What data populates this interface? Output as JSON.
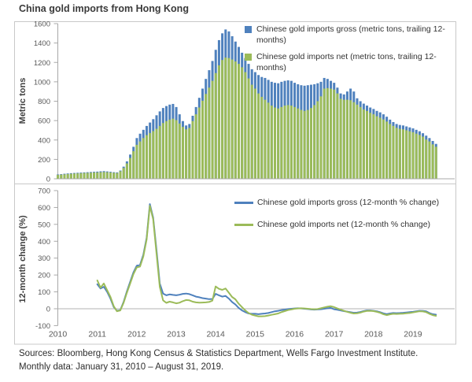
{
  "title": "China gold imports from Hong Kong",
  "footer": {
    "line1": "Sources: Bloomberg, Hong Kong Census & Statistics Department, Wells Fargo Investment Institute.",
    "line2": "Monthly data: January 31, 2010 – August 31, 2019."
  },
  "colors": {
    "gross": "#4f81bd",
    "net": "#9bbb59",
    "panel_border": "#c8c8c8",
    "axis_line": "#a8a8a8",
    "zero_line": "#b3b3b3",
    "tick_text": "#595959",
    "axis_title_text": "#3f3f3f"
  },
  "chart_data": [
    {
      "type": "bar",
      "panel": "top",
      "xlabel": "",
      "ylabel": "Metric tons",
      "ylim": [
        0,
        1600
      ],
      "yticks": [
        0,
        200,
        400,
        600,
        800,
        1000,
        1200,
        1400,
        1600
      ],
      "grid": false,
      "legend_position": "top-right",
      "frequency": "monthly",
      "start_month": "2010-01",
      "end_month": "2019-08",
      "year_ticks": [
        "2010",
        "2011",
        "2012",
        "2013",
        "2014",
        "2015",
        "2016",
        "2017",
        "2018",
        "2019"
      ],
      "legend": [
        {
          "label": "Chinese gold imports gross (metric tons, trailing 12-months)",
          "color": "#4f81bd"
        },
        {
          "label": "Chinese gold imports net (metric tons, trailing 12-months)",
          "color": "#9bbb59"
        }
      ],
      "series": [
        {
          "name": "Chinese gold imports gross (metric tons, trailing 12-months)",
          "values": [
            45,
            48,
            52,
            55,
            58,
            60,
            62,
            64,
            66,
            68,
            70,
            72,
            74,
            77,
            79,
            76,
            72,
            68,
            66,
            85,
            125,
            180,
            250,
            330,
            420,
            465,
            505,
            545,
            580,
            615,
            655,
            695,
            730,
            750,
            765,
            772,
            740,
            665,
            595,
            550,
            565,
            650,
            740,
            835,
            930,
            1030,
            1120,
            1215,
            1330,
            1430,
            1500,
            1540,
            1520,
            1470,
            1415,
            1360,
            1300,
            1245,
            1185,
            1130,
            1100,
            1070,
            1050,
            1040,
            1020,
            1000,
            990,
            985,
            1000,
            1010,
            1015,
            1010,
            990,
            975,
            965,
            960,
            965,
            970,
            975,
            985,
            1000,
            1040,
            1030,
            1010,
            990,
            940,
            880,
            870,
            900,
            930,
            900,
            830,
            800,
            775,
            755,
            735,
            720,
            700,
            685,
            665,
            640,
            610,
            585,
            565,
            555,
            550,
            540,
            530,
            520,
            505,
            490,
            470,
            445,
            420,
            390,
            360
          ]
        },
        {
          "name": "Chinese gold imports net (metric tons, trailing 12-months)",
          "values": [
            40,
            43,
            46,
            49,
            52,
            54,
            56,
            58,
            60,
            61,
            63,
            65,
            66,
            68,
            70,
            68,
            65,
            62,
            60,
            78,
            112,
            158,
            215,
            285,
            350,
            385,
            420,
            450,
            472,
            492,
            515,
            545,
            575,
            595,
            610,
            620,
            605,
            570,
            535,
            510,
            525,
            595,
            665,
            735,
            805,
            875,
            940,
            1010,
            1090,
            1170,
            1225,
            1250,
            1245,
            1230,
            1210,
            1185,
            1150,
            1100,
            1035,
            970,
            930,
            880,
            845,
            815,
            785,
            755,
            735,
            725,
            740,
            755,
            760,
            755,
            740,
            725,
            710,
            700,
            710,
            730,
            760,
            800,
            850,
            930,
            935,
            930,
            920,
            880,
            825,
            815,
            815,
            810,
            790,
            765,
            740,
            715,
            700,
            680,
            665,
            645,
            630,
            612,
            590,
            565,
            545,
            525,
            515,
            510,
            500,
            490,
            480,
            465,
            452,
            435,
            405,
            385,
            355,
            330
          ]
        }
      ]
    },
    {
      "type": "line",
      "panel": "bottom",
      "xlabel": "",
      "ylabel": "12-month change (%)",
      "ylim": [
        -100,
        700
      ],
      "yticks": [
        700,
        600,
        500,
        400,
        300,
        200,
        100,
        0,
        -100
      ],
      "grid": false,
      "zero_line": true,
      "legend_position": "top-right",
      "frequency": "monthly",
      "start_month": "2011-01",
      "end_month": "2019-08",
      "year_ticks": [
        "2010",
        "2011",
        "2012",
        "2013",
        "2014",
        "2015",
        "2016",
        "2017",
        "2018",
        "2019"
      ],
      "legend": [
        {
          "label": "Chinese gold imports gross (12-month % change)",
          "color": "#4f81bd"
        },
        {
          "label": "Chinese gold imports net (12-month % change)",
          "color": "#9bbb59"
        }
      ],
      "series": [
        {
          "name": "Chinese gold imports gross (12-month % change)",
          "values": [
            145,
            120,
            130,
            100,
            60,
            10,
            -12,
            -8,
            40,
            103,
            160,
            215,
            255,
            260,
            320,
            420,
            620,
            540,
            350,
            150,
            90,
            80,
            85,
            82,
            80,
            83,
            88,
            90,
            87,
            80,
            72,
            68,
            63,
            60,
            57,
            58,
            88,
            80,
            72,
            76,
            60,
            40,
            25,
            5,
            -10,
            -20,
            -28,
            -30,
            -30,
            -32,
            -30,
            -28,
            -25,
            -20,
            -15,
            -12,
            -8,
            -5,
            -2,
            0,
            2,
            3,
            2,
            0,
            -2,
            -4,
            -5,
            -4,
            -3,
            0,
            3,
            5,
            -3,
            -6,
            -10,
            -14,
            -17,
            -20,
            -24,
            -23,
            -19,
            -14,
            -10,
            -10,
            -12,
            -15,
            -20,
            -27,
            -32,
            -28,
            -25,
            -26,
            -25,
            -24,
            -22,
            -20,
            -18,
            -15,
            -12,
            -13,
            -15,
            -25,
            -32,
            -35
          ]
        },
        {
          "name": "Chinese gold imports net (12-month % change)",
          "values": [
            168,
            125,
            150,
            110,
            70,
            15,
            -15,
            -10,
            35,
            95,
            150,
            205,
            245,
            250,
            310,
            410,
            610,
            530,
            330,
            130,
            50,
            35,
            42,
            38,
            32,
            36,
            45,
            52,
            50,
            42,
            38,
            36,
            37,
            38,
            40,
            48,
            132,
            118,
            112,
            120,
            95,
            70,
            56,
            30,
            10,
            -10,
            -25,
            -35,
            -40,
            -45,
            -45,
            -44,
            -40,
            -36,
            -32,
            -28,
            -20,
            -14,
            -8,
            -4,
            0,
            2,
            3,
            2,
            0,
            -2,
            -3,
            -2,
            3,
            8,
            12,
            15,
            10,
            2,
            -5,
            -12,
            -18,
            -24,
            -28,
            -27,
            -23,
            -17,
            -13,
            -12,
            -14,
            -18,
            -24,
            -32,
            -38,
            -33,
            -30,
            -31,
            -30,
            -29,
            -27,
            -25,
            -22,
            -18,
            -15,
            -16,
            -20,
            -30,
            -38,
            -42
          ]
        }
      ]
    }
  ]
}
